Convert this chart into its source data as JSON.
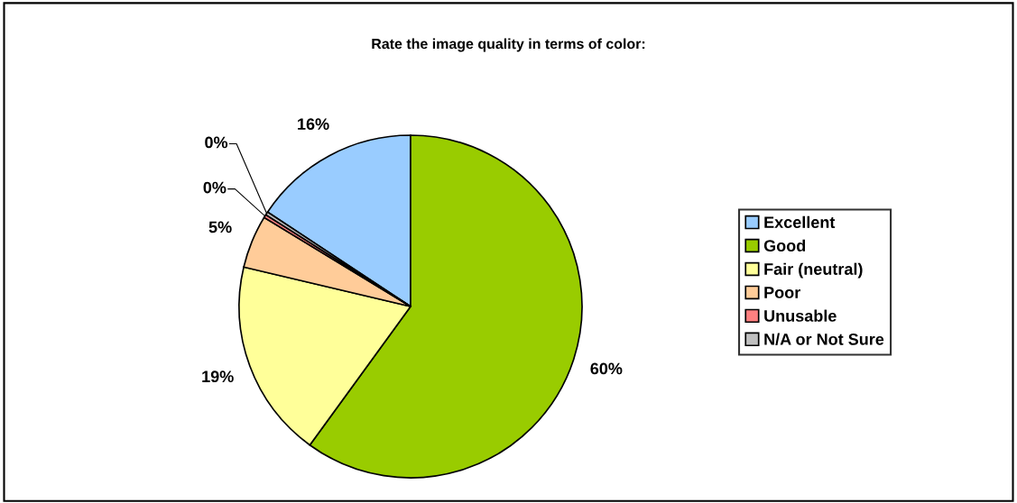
{
  "chart_data": {
    "type": "pie",
    "title": "Rate the image quality in terms of color:",
    "categories": [
      "Excellent",
      "Good",
      "Fair (neutral)",
      "Poor",
      "Unusable",
      "N/A or Not Sure"
    ],
    "values": [
      15.7,
      60,
      18.7,
      5,
      0.3,
      0.3
    ],
    "value_labels": [
      "16%",
      "60%",
      "19%",
      "5%",
      "0%",
      "0%"
    ],
    "colors": [
      "#99ccff",
      "#99cc00",
      "#ffff99",
      "#ffcc99",
      "#ff8080",
      "#c0c0c0"
    ],
    "legend": "right"
  }
}
